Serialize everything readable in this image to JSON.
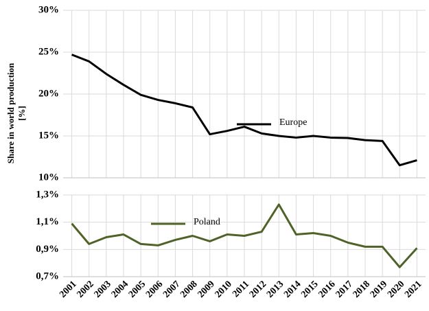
{
  "chart_data": [
    {
      "type": "line",
      "ylabel": [
        "Share in world production",
        "[%]"
      ],
      "ylim": [
        10,
        30
      ],
      "yticks": [
        {
          "value": 10,
          "label": "10%"
        },
        {
          "value": 15,
          "label": "15%"
        },
        {
          "value": 20,
          "label": "20%"
        },
        {
          "value": 25,
          "label": "25%"
        },
        {
          "value": 30,
          "label": "30%"
        }
      ],
      "grid": true,
      "series": [
        {
          "name": "Europe",
          "color": "#000000",
          "values": [
            24.7,
            23.9,
            22.4,
            21.1,
            19.9,
            19.3,
            18.9,
            18.4,
            15.2,
            15.6,
            16.1,
            15.3,
            15.0,
            14.8,
            15.0,
            14.8,
            14.75,
            14.5,
            14.4,
            11.5,
            12.1
          ]
        }
      ]
    },
    {
      "type": "line",
      "categories": [
        "2001",
        "2002",
        "2003",
        "2004",
        "2005",
        "2006",
        "2007",
        "2008",
        "2009",
        "2010",
        "2011",
        "2012",
        "2013",
        "2014",
        "2015",
        "2016",
        "2017",
        "2018",
        "2019",
        "2020",
        "2021"
      ],
      "ylim": [
        0.7,
        1.3
      ],
      "yticks": [
        {
          "value": 0.7,
          "label": "0,7%"
        },
        {
          "value": 0.9,
          "label": "0,9%"
        },
        {
          "value": 1.1,
          "label": "1,1%"
        },
        {
          "value": 1.3,
          "label": "1,3%"
        }
      ],
      "grid": true,
      "series": [
        {
          "name": "Poland",
          "color": "#4f6228",
          "values": [
            1.09,
            0.94,
            0.99,
            1.01,
            0.94,
            0.93,
            0.97,
            1.0,
            0.96,
            1.01,
            1.0,
            1.03,
            1.23,
            1.01,
            1.02,
            1.0,
            0.95,
            0.92,
            0.92,
            0.77,
            0.91
          ]
        }
      ]
    }
  ]
}
